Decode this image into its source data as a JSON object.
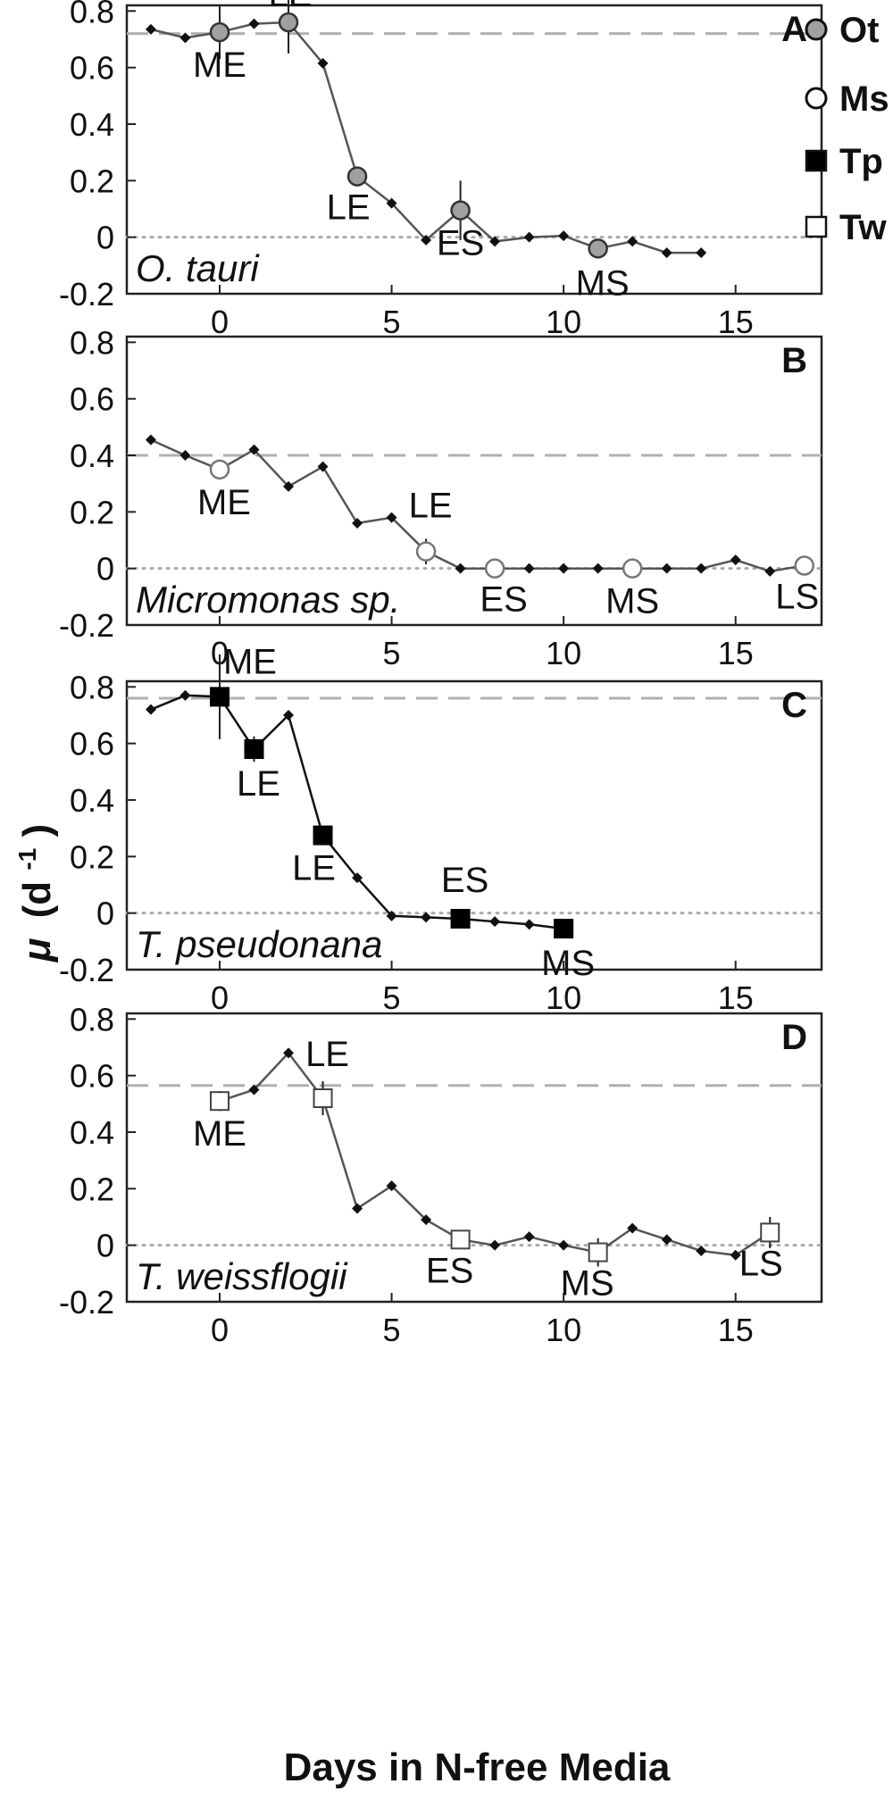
{
  "chart_data": {
    "type": "line",
    "xlabel": "Days in N-free Media",
    "ylabel_main": "μ",
    "ylabel_unit": "(d",
    "ylabel_sup": "-1",
    "ylabel_close": ")",
    "xlim": [
      -2.7,
      17.5
    ],
    "ylim": [
      -0.2,
      0.82
    ],
    "x_ticks": [
      0,
      5,
      10,
      15
    ],
    "y_ticks": [
      -0.2,
      0,
      0.2,
      0.4,
      0.6,
      0.8
    ],
    "x_tick_labels": [
      "0",
      "5",
      "10",
      "15"
    ],
    "y_tick_labels": [
      "-0.2",
      "0",
      "0.2",
      "0.4",
      "0.6",
      "0.8"
    ],
    "legend": [
      {
        "label": "Ot",
        "marker": "circle",
        "fill": "#a0a0a0"
      },
      {
        "label": "Ms",
        "marker": "circle",
        "fill": "#ffffff"
      },
      {
        "label": "Tp",
        "marker": "square",
        "fill": "#000000"
      },
      {
        "label": "Tw",
        "marker": "square",
        "fill": "#ffffff"
      }
    ],
    "panels": [
      {
        "letter": "A",
        "species": "O. tauri",
        "line_color": "#555555",
        "marker": "circle",
        "marker_fill": "#a0a0a0",
        "marker_stroke": "#333333",
        "ref_line": 0.72,
        "x": [
          -2,
          -1,
          0,
          1,
          2,
          3,
          4,
          5,
          6,
          7,
          8,
          9,
          10,
          11,
          12,
          13,
          14
        ],
        "y": [
          0.735,
          0.705,
          0.725,
          0.755,
          0.76,
          0.615,
          0.215,
          0.12,
          -0.01,
          0.095,
          -0.015,
          0.0,
          0.005,
          -0.04,
          -0.015,
          -0.055,
          -0.055
        ],
        "stage_points": [
          {
            "x": 0,
            "y": 0.725,
            "label": "ME",
            "err": 0.095
          },
          {
            "x": 2,
            "y": 0.76,
            "label": "LE",
            "err": 0.11
          },
          {
            "x": 4,
            "y": 0.215,
            "label": "LE",
            "err": 0
          },
          {
            "x": 7,
            "y": 0.095,
            "label": "ES",
            "err": 0.105
          },
          {
            "x": 11,
            "y": -0.04,
            "label": "MS",
            "err": 0
          }
        ]
      },
      {
        "letter": "B",
        "species": "Micromonas sp.",
        "line_color": "#555555",
        "marker": "circle",
        "marker_fill": "#ffffff",
        "marker_stroke": "#777777",
        "ref_line": 0.4,
        "x": [
          -2,
          -1,
          0,
          1,
          2,
          3,
          4,
          5,
          6,
          7,
          8,
          9,
          10,
          11,
          12,
          13,
          14,
          15,
          16,
          17
        ],
        "y": [
          0.455,
          0.4,
          0.35,
          0.42,
          0.29,
          0.36,
          0.16,
          0.18,
          0.06,
          0.0,
          0.0,
          0.0,
          0.0,
          0.0,
          0.0,
          0.0,
          0.0,
          0.03,
          -0.01,
          0.01
        ],
        "stage_points": [
          {
            "x": 0,
            "y": 0.35,
            "label": "ME",
            "err": 0
          },
          {
            "x": 6,
            "y": 0.06,
            "label": "LE",
            "err": 0.045
          },
          {
            "x": 8,
            "y": 0.0,
            "label": "ES",
            "err": 0
          },
          {
            "x": 12,
            "y": 0.0,
            "label": "MS",
            "err": 0
          },
          {
            "x": 17,
            "y": 0.01,
            "label": "LS",
            "err": 0
          }
        ]
      },
      {
        "letter": "C",
        "species": "T. pseudonana",
        "line_color": "#111111",
        "marker": "square",
        "marker_fill": "#000000",
        "marker_stroke": "#000000",
        "ref_line": 0.76,
        "x": [
          -2,
          -1,
          0,
          1,
          2,
          3,
          4,
          5,
          6,
          7,
          8,
          9,
          10
        ],
        "y": [
          0.72,
          0.77,
          0.765,
          0.58,
          0.7,
          0.275,
          0.125,
          -0.01,
          -0.015,
          -0.02,
          -0.03,
          -0.04,
          -0.055
        ],
        "stage_points": [
          {
            "x": 0,
            "y": 0.765,
            "label": "ME",
            "err": 0.15
          },
          {
            "x": 1,
            "y": 0.58,
            "label": "LE",
            "err": 0.045
          },
          {
            "x": 3,
            "y": 0.275,
            "label": "LE",
            "err": 0
          },
          {
            "x": 7,
            "y": -0.02,
            "label": "ES",
            "err": 0.025
          },
          {
            "x": 10,
            "y": -0.055,
            "label": "MS",
            "err": 0
          }
        ]
      },
      {
        "letter": "D",
        "species": "T. weissflogii",
        "line_color": "#555555",
        "marker": "square",
        "marker_fill": "#ffffff",
        "marker_stroke": "#444444",
        "ref_line": 0.565,
        "x": [
          -2,
          -1,
          0,
          1,
          2,
          3,
          4,
          5,
          6,
          7,
          8,
          9,
          10,
          11,
          12,
          13,
          14,
          15,
          16
        ],
        "y": [
          null,
          null,
          0.51,
          0.55,
          0.68,
          0.52,
          0.13,
          0.21,
          0.09,
          0.02,
          0.0,
          0.03,
          0.0,
          -0.025,
          0.06,
          0.02,
          -0.02,
          -0.035,
          0.045
        ],
        "stage_points": [
          {
            "x": 0,
            "y": 0.51,
            "label": "ME",
            "err": 0.035
          },
          {
            "x": 3,
            "y": 0.52,
            "label": "LE",
            "err": 0.06
          },
          {
            "x": 7,
            "y": 0.02,
            "label": "ES",
            "err": 0
          },
          {
            "x": 11,
            "y": -0.025,
            "label": "MS",
            "err": 0.05
          },
          {
            "x": 16,
            "y": 0.045,
            "label": "LS",
            "err": 0.055
          }
        ]
      }
    ]
  }
}
